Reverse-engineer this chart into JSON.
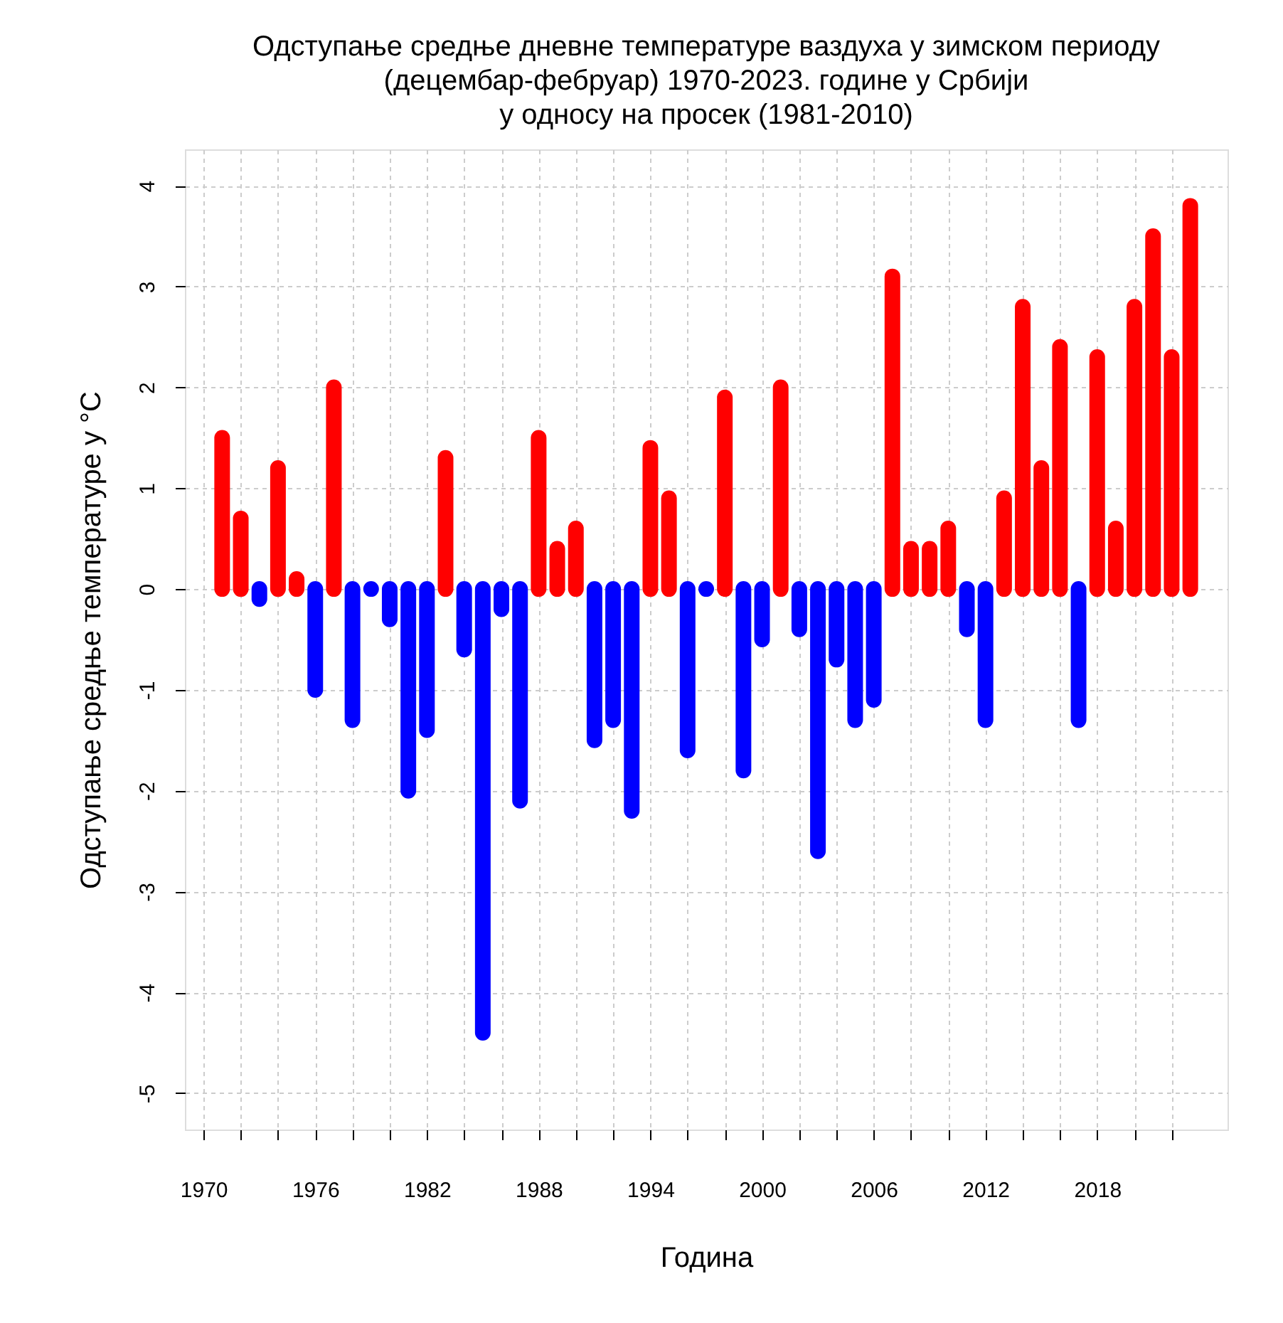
{
  "chart_data": {
    "type": "bar",
    "title": "Одступање средње дневне температуре ваздуха у зимском периоду\n(децембар-фебруар)  1970-2023. године у Србији\nу односу на просек (1981-2010)",
    "xlabel": "Година",
    "ylabel": "Одступање средње температуре у °C",
    "x": [
      1971,
      1972,
      1973,
      1974,
      1975,
      1976,
      1977,
      1978,
      1979,
      1980,
      1981,
      1982,
      1983,
      1984,
      1985,
      1986,
      1987,
      1988,
      1989,
      1990,
      1991,
      1992,
      1993,
      1994,
      1995,
      1996,
      1997,
      1998,
      1999,
      2000,
      2001,
      2002,
      2003,
      2004,
      2005,
      2006,
      2007,
      2008,
      2009,
      2010,
      2011,
      2012,
      2013,
      2014,
      2015,
      2016,
      2017,
      2018,
      2019,
      2020,
      2021,
      2022,
      2023
    ],
    "values": [
      1.5,
      0.7,
      -0.1,
      1.2,
      0.1,
      -1.0,
      2.0,
      -1.3,
      0.0,
      -0.3,
      -2.0,
      -1.4,
      1.3,
      -0.6,
      -4.4,
      -0.2,
      -2.1,
      1.5,
      0.4,
      0.6,
      -1.5,
      -1.3,
      -2.2,
      1.4,
      0.9,
      -1.6,
      0.0,
      1.9,
      -1.8,
      -0.5,
      2.0,
      -0.4,
      -2.6,
      -0.7,
      -1.3,
      -1.1,
      3.1,
      0.4,
      0.4,
      0.6,
      -0.4,
      -1.3,
      0.9,
      2.8,
      1.2,
      2.4,
      -1.3,
      2.3,
      0.6,
      2.8,
      3.5,
      2.3,
      3.8
    ],
    "colors": [
      "#ff0000",
      "#ff0000",
      "#0000ff",
      "#ff0000",
      "#ff0000",
      "#0000ff",
      "#ff0000",
      "#0000ff",
      "#0000ff",
      "#0000ff",
      "#0000ff",
      "#0000ff",
      "#ff0000",
      "#0000ff",
      "#0000ff",
      "#0000ff",
      "#0000ff",
      "#ff0000",
      "#ff0000",
      "#ff0000",
      "#0000ff",
      "#0000ff",
      "#0000ff",
      "#ff0000",
      "#ff0000",
      "#0000ff",
      "#0000ff",
      "#ff0000",
      "#0000ff",
      "#0000ff",
      "#ff0000",
      "#0000ff",
      "#0000ff",
      "#0000ff",
      "#0000ff",
      "#0000ff",
      "#ff0000",
      "#ff0000",
      "#ff0000",
      "#ff0000",
      "#0000ff",
      "#0000ff",
      "#ff0000",
      "#ff0000",
      "#ff0000",
      "#ff0000",
      "#0000ff",
      "#ff0000",
      "#ff0000",
      "#ff0000",
      "#ff0000",
      "#ff0000",
      "#ff0000"
    ],
    "xlim": [
      1969,
      2025
    ],
    "xticks": [
      1970,
      {
        "value": 1972,
        "label": null
      },
      {
        "value": 1974,
        "label": null
      },
      1976,
      {
        "value": 1978,
        "label": null
      },
      {
        "value": 1980,
        "label": null
      },
      1982,
      {
        "value": 1984,
        "label": null
      },
      {
        "value": 1986,
        "label": null
      },
      1988,
      {
        "value": 1990,
        "label": null
      },
      {
        "value": 1992,
        "label": null
      },
      1994,
      {
        "value": 1996,
        "label": null
      },
      {
        "value": 1998,
        "label": null
      },
      2000,
      {
        "value": 2002,
        "label": null
      },
      {
        "value": 2004,
        "label": null
      },
      2006,
      {
        "value": 2008,
        "label": null
      },
      {
        "value": 2010,
        "label": null
      },
      2012,
      {
        "value": 2014,
        "label": null
      },
      {
        "value": 2016,
        "label": null
      },
      2018,
      {
        "value": 2020,
        "label": null
      },
      {
        "value": 2022,
        "label": null
      }
    ],
    "ylim": [
      -5.36,
      4.36
    ],
    "yticks": [
      -5,
      -4,
      -3,
      -2,
      -1,
      0,
      1,
      2,
      3,
      4
    ],
    "grid": true,
    "legend": false
  }
}
